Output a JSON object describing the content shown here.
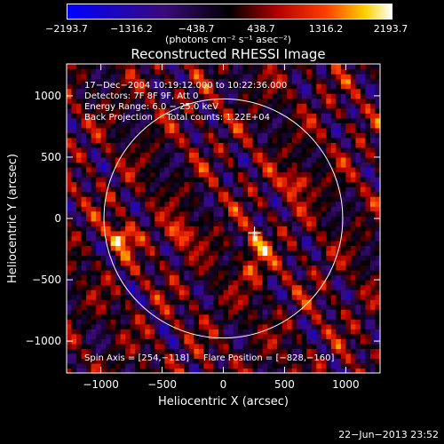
{
  "colorbar": {
    "ticks": [
      "−2193.7",
      "−1316.2",
      "−438.7",
      "438.7",
      "1316.2",
      "2193.7"
    ],
    "units": "(photons cm⁻² s⁻¹ asec⁻²)"
  },
  "chart_data": {
    "type": "heatmap",
    "title": "Reconstructed RHESSI Image",
    "xlabel": "Heliocentric X (arcsec)",
    "ylabel": "Heliocentric Y (arcsec)",
    "xlim": [
      -1280,
      1280
    ],
    "ylim": [
      -1260,
      1260
    ],
    "xticks": [
      -1000,
      -500,
      0,
      500,
      1000
    ],
    "yticks": [
      -1000,
      -500,
      0,
      500,
      1000
    ],
    "xtick_labels": [
      "−1000",
      "−500",
      "0",
      "500",
      "1000"
    ],
    "ytick_labels": [
      "−1000",
      "−500",
      "0",
      "500",
      "1000"
    ],
    "value_range": [
      -2193.7,
      2193.7
    ],
    "solar_limb_radius_arcsec": 975,
    "flare_marker": [
      254,
      -118
    ],
    "bright_spots": [
      {
        "x": -828,
        "y": -150,
        "value": 2000
      },
      {
        "x": -350,
        "y": -120,
        "value": 1500
      },
      {
        "x": 260,
        "y": -220,
        "value": 1400
      },
      {
        "x": 600,
        "y": 300,
        "value": 1600
      },
      {
        "x": 250,
        "y": -420,
        "value": 1100
      }
    ],
    "annotations": [
      "17−Dec−2004 10:19:12.000 to 10:22:36.000",
      "Detectors: 7F 8F 9F, Att 0",
      "Energy Range: 6.0 − 25.0 keV",
      "Back Projection     Total counts: 1.22E+04",
      "Spin Axis = [254,−118]     Flare Position = [−828,−160]"
    ]
  },
  "footer": {
    "date": "22−Jun−2013 23:52"
  }
}
